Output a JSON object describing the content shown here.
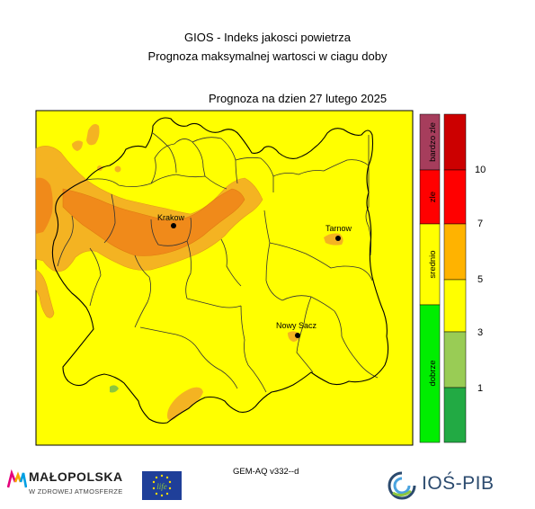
{
  "title": {
    "line1": "GIOS - Indeks jakosci powietrza",
    "line2": "Prognoza maksymalnej wartosci w ciagu doby"
  },
  "forecast_date": "Prognoza na dzien  27 lutego 2025",
  "cities": [
    {
      "name": "Krakow"
    },
    {
      "name": "Tarnow"
    },
    {
      "name": "Nowy Sacz"
    }
  ],
  "legend": {
    "categories": [
      "bardzo zle",
      "zle",
      "srednio",
      "dobrze"
    ],
    "category_colors": [
      "#a63d5c",
      "#ff0000",
      "#ffff00",
      "#00ee00"
    ],
    "scale_colors": [
      "#cc0000",
      "#ff0000",
      "#ffb300",
      "#ffff00",
      "#99cc55",
      "#22aa44"
    ],
    "scale_labels": [
      "10",
      "7",
      "5",
      "3",
      "1"
    ]
  },
  "map_colors": {
    "background": "#ffff00",
    "moderate_high": "#f4b322",
    "high": "#f08a1a",
    "low": "#8cc63f",
    "border": "#333333"
  },
  "model_label": "GEM-AQ v332--d",
  "logos": {
    "malopolska_name": "MAŁOPOLSKA",
    "malopolska_slogan": "W ZDROWEJ ATMOSFERZE",
    "eu_life_text": "life",
    "ios_name": "IOŚ-PIB"
  }
}
